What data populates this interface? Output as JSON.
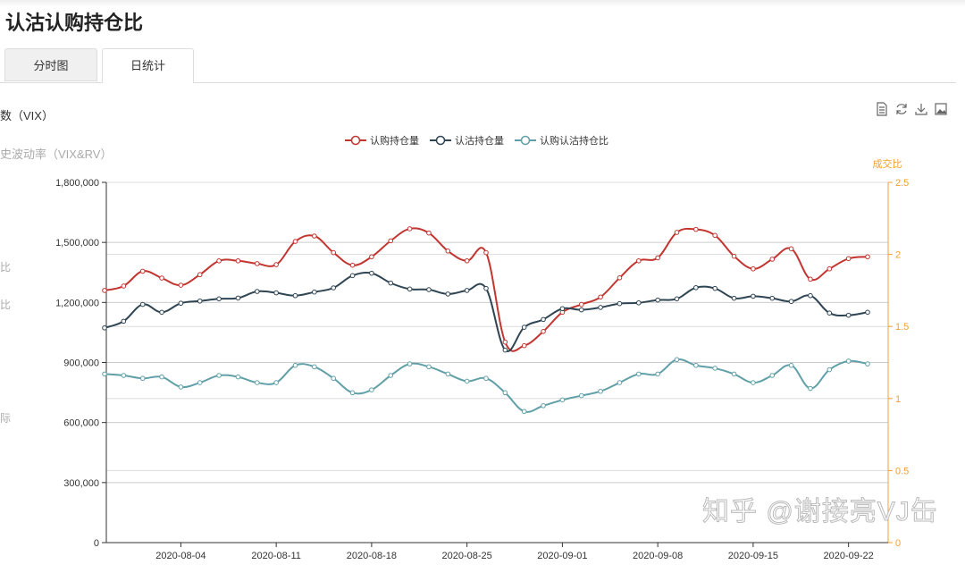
{
  "page_title": "认沽认购持仓比",
  "tabs": [
    {
      "label": "分时图",
      "active": false
    },
    {
      "label": "日统计",
      "active": true
    }
  ],
  "side_labels": {
    "vix": "数（VIX）",
    "hist_vol": "史波动率（VIX&RV）",
    "cut1": "比",
    "cut2": "比",
    "cut3": "际"
  },
  "toolbox": [
    "data-view-icon",
    "refresh-icon",
    "download-icon",
    "save-image-icon"
  ],
  "watermark": "知乎 @谢接亮VJ缶",
  "colors": {
    "call": "#c23531",
    "put": "#2f4554",
    "ratio": "#61a0a8",
    "right_axis": "#f0a030"
  },
  "chart_data": {
    "type": "line",
    "legend": [
      "认购持仓量",
      "认沽持仓量",
      "认购认沽持仓比"
    ],
    "legend_placement": "top-center",
    "grid": true,
    "x": [
      "2020-07-29",
      "2020-07-30",
      "2020-07-31",
      "2020-08-03",
      "2020-08-04",
      "2020-08-05",
      "2020-08-06",
      "2020-08-07",
      "2020-08-10",
      "2020-08-11",
      "2020-08-12",
      "2020-08-13",
      "2020-08-14",
      "2020-08-17",
      "2020-08-18",
      "2020-08-19",
      "2020-08-20",
      "2020-08-21",
      "2020-08-24",
      "2020-08-25",
      "2020-08-26",
      "2020-08-27",
      "2020-08-28",
      "2020-08-31",
      "2020-09-01",
      "2020-09-02",
      "2020-09-03",
      "2020-09-04",
      "2020-09-07",
      "2020-09-08",
      "2020-09-09",
      "2020-09-10",
      "2020-09-11",
      "2020-09-14",
      "2020-09-15",
      "2020-09-16",
      "2020-09-17",
      "2020-09-18",
      "2020-09-21",
      "2020-09-22",
      "2020-09-23"
    ],
    "x_tick_labels": [
      "2020-08-04",
      "2020-08-11",
      "2020-08-18",
      "2020-08-25",
      "2020-09-01",
      "2020-09-08",
      "2020-09-15",
      "2020-09-22"
    ],
    "y_left": {
      "ylim": [
        0,
        1800000
      ],
      "ticks": [
        "0",
        "300,000",
        "600,000",
        "900,000",
        "1,200,000",
        "1,500,000",
        "1,800,000"
      ]
    },
    "y_right": {
      "label": "成交比",
      "ylim": [
        0,
        2.5
      ],
      "ticks": [
        "0",
        "0.5",
        "1",
        "1.5",
        "2",
        "2.5"
      ]
    },
    "series": [
      {
        "name": "认购持仓量",
        "axis": "left",
        "values": [
          1260000,
          1282000,
          1356000,
          1322000,
          1286000,
          1339000,
          1408000,
          1408000,
          1394000,
          1389000,
          1505000,
          1532000,
          1449000,
          1386000,
          1428000,
          1508000,
          1568000,
          1547000,
          1457000,
          1408000,
          1449000,
          1002000,
          984000,
          1055000,
          1151000,
          1190000,
          1227000,
          1323000,
          1408000,
          1423000,
          1550000,
          1565000,
          1535000,
          1431000,
          1368000,
          1416000,
          1468000,
          1316000,
          1368000,
          1419000,
          1428000
        ]
      },
      {
        "name": "认沽持仓量",
        "axis": "left",
        "values": [
          1073000,
          1106000,
          1190000,
          1151000,
          1196000,
          1207000,
          1218000,
          1222000,
          1255000,
          1248000,
          1234000,
          1252000,
          1273000,
          1334000,
          1346000,
          1297000,
          1267000,
          1264000,
          1242000,
          1260000,
          1270000,
          962000,
          1076000,
          1115000,
          1169000,
          1163000,
          1175000,
          1194000,
          1198000,
          1212000,
          1218000,
          1274000,
          1270000,
          1221000,
          1231000,
          1221000,
          1205000,
          1234000,
          1147000,
          1136000,
          1151000
        ]
      },
      {
        "name": "认购认沽持仓比",
        "axis": "right",
        "values": [
          1.17,
          1.16,
          1.14,
          1.15,
          1.08,
          1.11,
          1.16,
          1.15,
          1.11,
          1.11,
          1.23,
          1.22,
          1.14,
          1.04,
          1.06,
          1.16,
          1.24,
          1.22,
          1.17,
          1.12,
          1.14,
          1.04,
          0.91,
          0.95,
          0.99,
          1.02,
          1.05,
          1.11,
          1.17,
          1.17,
          1.27,
          1.23,
          1.21,
          1.17,
          1.11,
          1.16,
          1.23,
          1.07,
          1.2,
          1.26,
          1.24
        ]
      }
    ]
  }
}
